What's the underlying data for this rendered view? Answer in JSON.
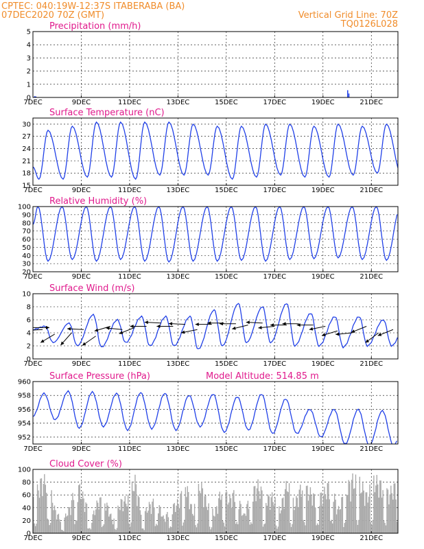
{
  "header": {
    "line1_left": "CPTEC:   040:19W-12:37S   ITABERABA (BA)",
    "line2_left": "07DEC2020  70Z (GMT)",
    "line2_right": "Vertical Grid Line: 70Z",
    "line3_right": "TQ0126L028"
  },
  "x_axis": {
    "start_day": 7,
    "end_day": 22.1,
    "tick_days": [
      7,
      9,
      11,
      13,
      15,
      17,
      19,
      21
    ],
    "tick_labels": [
      "7DEC",
      "9DEC",
      "11DEC",
      "13DEC",
      "15DEC",
      "17DEC",
      "19DEC",
      "21DEC"
    ]
  },
  "chart_data": [
    {
      "id": "precip",
      "type": "bar",
      "title": "Precipitation (mm/h)",
      "ylim": [
        0,
        5
      ],
      "yticks": [
        0,
        1,
        2,
        3,
        4,
        5
      ],
      "x": [
        7.05,
        7.1,
        20.0,
        20.05
      ],
      "values": [
        0.1,
        0.08,
        0.55,
        0.3
      ]
    },
    {
      "id": "temp",
      "type": "line",
      "title": "Surface Temperature (nC)",
      "ylim": [
        15,
        31.5
      ],
      "yticks": [
        15,
        18,
        21,
        24,
        27,
        30
      ],
      "days": [
        7,
        8,
        9,
        10,
        11,
        12,
        13,
        14,
        15,
        16,
        17,
        18,
        19,
        20,
        21,
        22
      ],
      "daily_max": [
        28.5,
        29.5,
        30.5,
        30.5,
        30.5,
        30.5,
        30.0,
        29.5,
        29.5,
        30.0,
        30.0,
        29.5,
        30.0,
        29.5,
        30.0,
        30.0
      ],
      "daily_min": [
        16.5,
        16.5,
        17.0,
        17.0,
        16.5,
        17.5,
        17.5,
        17.5,
        16.5,
        17.0,
        17.5,
        17.0,
        17.0,
        17.5,
        18.0,
        17.5
      ],
      "start_value": 19.5,
      "max_hour": 15,
      "min_hour": 6
    },
    {
      "id": "rh",
      "type": "line",
      "title": "Relative Humidity (%)",
      "ylim": [
        20,
        100
      ],
      "yticks": [
        20,
        30,
        40,
        50,
        60,
        70,
        80,
        90,
        100
      ],
      "days": [
        7,
        8,
        9,
        10,
        11,
        12,
        13,
        14,
        15,
        16,
        17,
        18,
        19,
        20,
        21,
        22
      ],
      "daily_max": [
        100,
        100,
        100,
        100,
        100,
        100,
        100,
        100,
        100,
        100,
        100,
        100,
        100,
        100,
        100,
        100
      ],
      "daily_min": [
        33,
        35,
        33,
        35,
        33,
        32,
        33,
        33,
        34,
        33,
        35,
        36,
        37,
        35,
        34,
        34
      ],
      "start_value": 78,
      "max_hour": 5,
      "min_hour": 15
    },
    {
      "id": "wind",
      "type": "line",
      "title": "Surface Wind (m/s)",
      "ylim": [
        0,
        10
      ],
      "yticks": [
        0,
        2,
        4,
        6,
        8,
        10
      ],
      "days": [
        7,
        8,
        9,
        10,
        11,
        12,
        13,
        14,
        15,
        16,
        17,
        18,
        19,
        20,
        21,
        22
      ],
      "daily_max": [
        5.0,
        5.5,
        6.8,
        6.0,
        6.5,
        6.5,
        6.5,
        7.5,
        8.5,
        8.0,
        8.5,
        7.0,
        6.5,
        6.5,
        6.0,
        6.0
      ],
      "daily_min": [
        2.5,
        2.0,
        1.8,
        2.5,
        2.0,
        2.0,
        1.5,
        2.0,
        2.5,
        2.5,
        2.0,
        2.0,
        1.8,
        2.0,
        2.0,
        3.0
      ],
      "start_value": 4.5,
      "max_hour": 12,
      "min_hour": 20,
      "vectors": [
        {
          "day": 7.0,
          "y": 4.8,
          "dx": 1,
          "dy": 0
        },
        {
          "day": 7.4,
          "y": 4.5,
          "dx": -1,
          "dy": -0.05
        },
        {
          "day": 7.9,
          "y": 3.8,
          "dx": -1,
          "dy": -0.6
        },
        {
          "day": 8.6,
          "y": 4.0,
          "dx": -0.8,
          "dy": -0.9
        },
        {
          "day": 9.1,
          "y": 4.5,
          "dx": -1,
          "dy": 0.05
        },
        {
          "day": 9.6,
          "y": 3.5,
          "dx": -1,
          "dy": -0.7
        },
        {
          "day": 10.2,
          "y": 5.0,
          "dx": -1,
          "dy": -0.3
        },
        {
          "day": 10.7,
          "y": 4.5,
          "dx": -1,
          "dy": 0.1
        },
        {
          "day": 11.2,
          "y": 4.8,
          "dx": -1,
          "dy": -0.4
        },
        {
          "day": 11.7,
          "y": 5.0,
          "dx": -1,
          "dy": 0
        },
        {
          "day": 12.3,
          "y": 5.5,
          "dx": -1,
          "dy": 0.05
        },
        {
          "day": 12.8,
          "y": 5.0,
          "dx": -1,
          "dy": 0
        },
        {
          "day": 13.3,
          "y": 5.3,
          "dx": -1,
          "dy": 0.05
        },
        {
          "day": 13.8,
          "y": 4.5,
          "dx": -1,
          "dy": -0.2
        },
        {
          "day": 14.4,
          "y": 5.3,
          "dx": -1,
          "dy": 0
        },
        {
          "day": 14.9,
          "y": 5.5,
          "dx": -1,
          "dy": 0
        },
        {
          "day": 15.4,
          "y": 5.4,
          "dx": -1,
          "dy": 0
        },
        {
          "day": 15.9,
          "y": 5.2,
          "dx": -1,
          "dy": -0.25
        },
        {
          "day": 16.5,
          "y": 5.5,
          "dx": -1,
          "dy": 0.05
        },
        {
          "day": 17.0,
          "y": 5.0,
          "dx": -1,
          "dy": -0.1
        },
        {
          "day": 17.5,
          "y": 5.2,
          "dx": -1,
          "dy": 0
        },
        {
          "day": 18.0,
          "y": 5.4,
          "dx": -1,
          "dy": 0
        },
        {
          "day": 18.6,
          "y": 5.2,
          "dx": -1,
          "dy": 0
        },
        {
          "day": 19.1,
          "y": 5.0,
          "dx": -1,
          "dy": -0.2
        },
        {
          "day": 19.6,
          "y": 4.3,
          "dx": -1,
          "dy": -0.3
        },
        {
          "day": 20.2,
          "y": 4.0,
          "dx": -1,
          "dy": -0.1
        },
        {
          "day": 20.8,
          "y": 5.0,
          "dx": -1,
          "dy": -0.4
        },
        {
          "day": 21.3,
          "y": 4.0,
          "dx": -0.8,
          "dy": -0.6
        },
        {
          "day": 21.9,
          "y": 4.5,
          "dx": -1,
          "dy": -0.4
        }
      ]
    },
    {
      "id": "press",
      "type": "line",
      "title": "Surface Pressure (hPa)",
      "annotation": "Model Altitude: 514.85 m",
      "ylim": [
        951,
        960
      ],
      "yticks": [
        952,
        954,
        956,
        958,
        960
      ],
      "days": [
        7,
        8,
        9,
        10,
        11,
        12,
        13,
        14,
        15,
        16,
        17,
        18,
        19,
        20,
        21,
        22
      ],
      "daily_max": [
        958.3,
        958.6,
        958.5,
        958.3,
        958.4,
        958.3,
        958.0,
        958.2,
        957.8,
        958.2,
        957.5,
        956.0,
        956.0,
        956.0,
        955.8,
        955.5
      ],
      "daily_min": [
        954.5,
        953.3,
        953.5,
        953.0,
        953.2,
        953.0,
        953.5,
        952.7,
        953.0,
        952.5,
        952.5,
        952.0,
        951.0,
        950.8,
        950.8,
        952.0
      ],
      "start_value": 955.0,
      "max_hour": 11,
      "min_hour": 22
    },
    {
      "id": "cloud",
      "type": "bar",
      "title": "Cloud Cover (%)",
      "ylim": [
        0,
        100
      ],
      "yticks": [
        0,
        20,
        40,
        60,
        80,
        100
      ],
      "envelope_days": [
        7.0,
        7.3,
        7.6,
        7.9,
        8.2,
        8.5,
        8.8,
        9.1,
        9.4,
        9.7,
        10.0,
        10.3,
        10.6,
        10.9,
        11.2,
        11.5,
        11.8,
        12.1,
        12.4,
        12.7,
        13.0,
        13.3,
        13.6,
        13.9,
        14.2,
        14.5,
        14.8,
        15.1,
        15.4,
        15.7,
        16.0,
        16.3,
        16.6,
        16.9,
        17.2,
        17.5,
        17.8,
        18.1,
        18.4,
        18.7,
        19.0,
        19.3,
        19.6,
        19.9,
        20.2,
        20.5,
        20.8,
        21.1,
        21.4,
        21.7,
        22.0
      ],
      "envelope_values": [
        60,
        90,
        95,
        40,
        20,
        45,
        90,
        60,
        25,
        60,
        55,
        20,
        55,
        60,
        95,
        30,
        50,
        60,
        25,
        45,
        55,
        90,
        35,
        90,
        50,
        35,
        80,
        60,
        75,
        30,
        70,
        85,
        60,
        65,
        40,
        90,
        50,
        85,
        75,
        60,
        70,
        90,
        40,
        75,
        95,
        90,
        65,
        95,
        85,
        70,
        85
      ]
    }
  ]
}
